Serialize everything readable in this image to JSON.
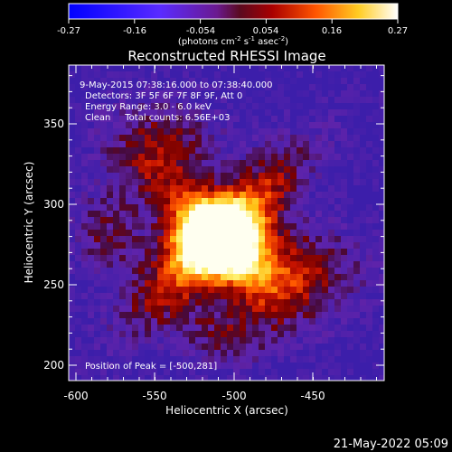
{
  "colorbar": {
    "ticks": [
      "-0.27",
      "-0.16",
      "-0.054",
      "0.054",
      "0.16",
      "0.27"
    ],
    "units_main": "(photons cm",
    "units_exp1": "-2",
    "units_mid": " s",
    "units_exp2": "-1",
    "units_mid2": " asec",
    "units_exp3": "-2",
    "units_end": ")",
    "vmin": -0.27,
    "vmax": 0.27
  },
  "title": "Reconstructed RHESSI Image",
  "info": {
    "time_range": "9-May-2015 07:38:16.000 to 07:38:40.000",
    "detectors": "Detectors: 3F 5F 6F 7F 8F 9F, Att 0",
    "energy": "Energy Range: 3.0 - 6.0 keV",
    "clean": "Clean     Total counts: 6.56E+03",
    "peak": "Position of Peak = [-500,281]"
  },
  "axes": {
    "xlabel": "Heliocentric X (arcsec)",
    "ylabel": "Heliocentric Y (arcsec)",
    "xticks": [
      "-600",
      "-550",
      "-500",
      "-450"
    ],
    "yticks": [
      "200",
      "250",
      "300",
      "350"
    ],
    "xlim": [
      -610,
      -409
    ],
    "ylim": [
      192,
      373
    ]
  },
  "footer": {
    "timestamp": "21-May-2022 05:09"
  },
  "colors": {
    "background": "#000000",
    "frame": "#ffffff"
  }
}
